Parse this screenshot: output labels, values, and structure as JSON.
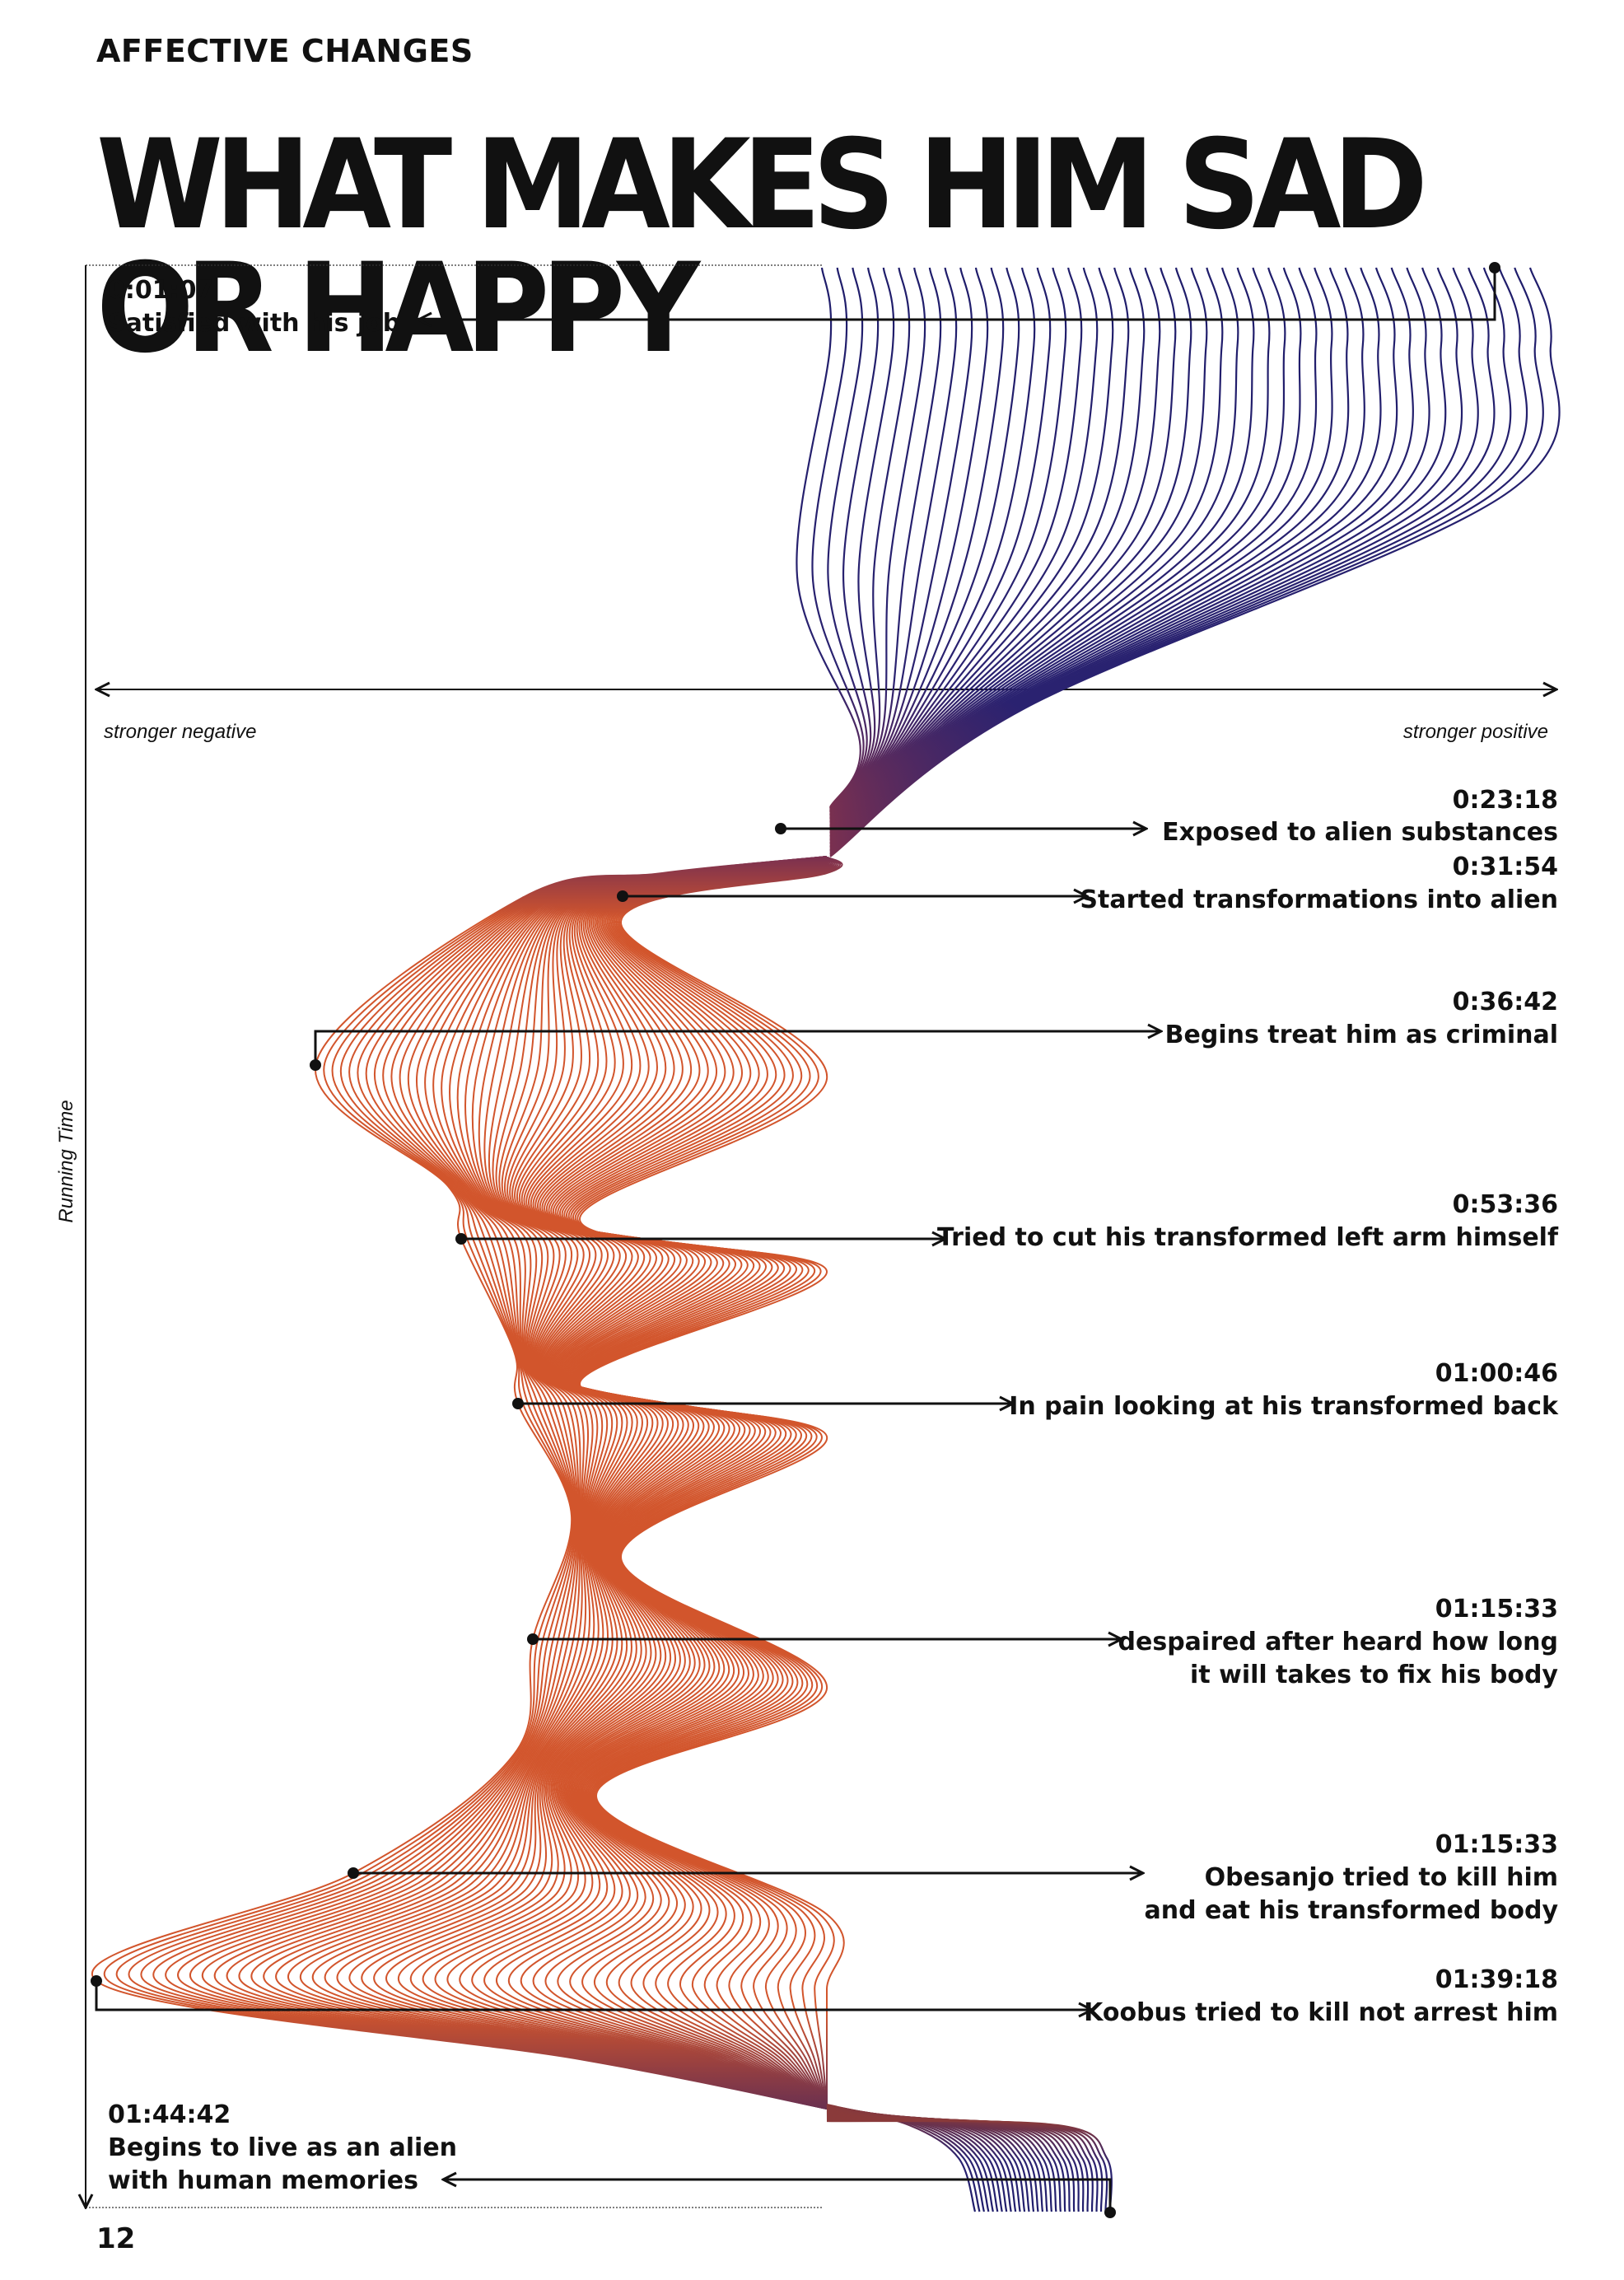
{
  "header": {
    "section": "AFFECTIVE CHANGES",
    "title": "WHAT MAKES HIM SAD OR HAPPY"
  },
  "footer": {
    "page_number": "12"
  },
  "colors": {
    "positive": "#1f1d6b",
    "negative": "#d2552c"
  },
  "chart_data": {
    "type": "area",
    "x_axis": {
      "label_left": "stronger negative",
      "label_right": "stronger positive"
    },
    "y_axis": {
      "label": "Running Time"
    },
    "events": [
      {
        "time": "0:01:07",
        "label": "Satisfied with his job",
        "sentiment": "positive",
        "value": 0.9
      },
      {
        "time": "0:23:18",
        "label": "Exposed to alien substances",
        "sentiment": "negative",
        "value": -0.1
      },
      {
        "time": "0:31:54",
        "label": "Started transformations into alien",
        "sentiment": "negative",
        "value": -0.28
      },
      {
        "time": "0:36:42",
        "label": "Begins treat him as criminal",
        "sentiment": "negative",
        "value": -0.7
      },
      {
        "time": "0:53:36",
        "label": "Tried to cut his transformed left arm himself",
        "sentiment": "negative",
        "value": -0.5
      },
      {
        "time": "01:00:46",
        "label": "In pain looking at his transformed back",
        "sentiment": "negative",
        "value": -0.42
      },
      {
        "time": "01:15:33",
        "label": "despaired after heard how long it will takes to fix his body",
        "label_lines": [
          "despaired after heard how long",
          "it will takes to fix his body"
        ],
        "sentiment": "negative",
        "value": -0.4
      },
      {
        "time": "01:15:33",
        "label": "Obesanjo tried to kill him and eat his transformed body",
        "label_lines": [
          "Obesanjo tried to kill him",
          "and eat his transformed body"
        ],
        "sentiment": "negative",
        "value": -0.65
      },
      {
        "time": "01:39:18",
        "label": "Koobus tried to kill not arrest him",
        "sentiment": "negative",
        "value": -1.0
      },
      {
        "time": "01:44:42",
        "label": "Begins to live as an alien with human memories",
        "label_lines": [
          "Begins to live as an alien",
          "with human memories"
        ],
        "sentiment": "positive",
        "value": 0.35
      }
    ]
  }
}
